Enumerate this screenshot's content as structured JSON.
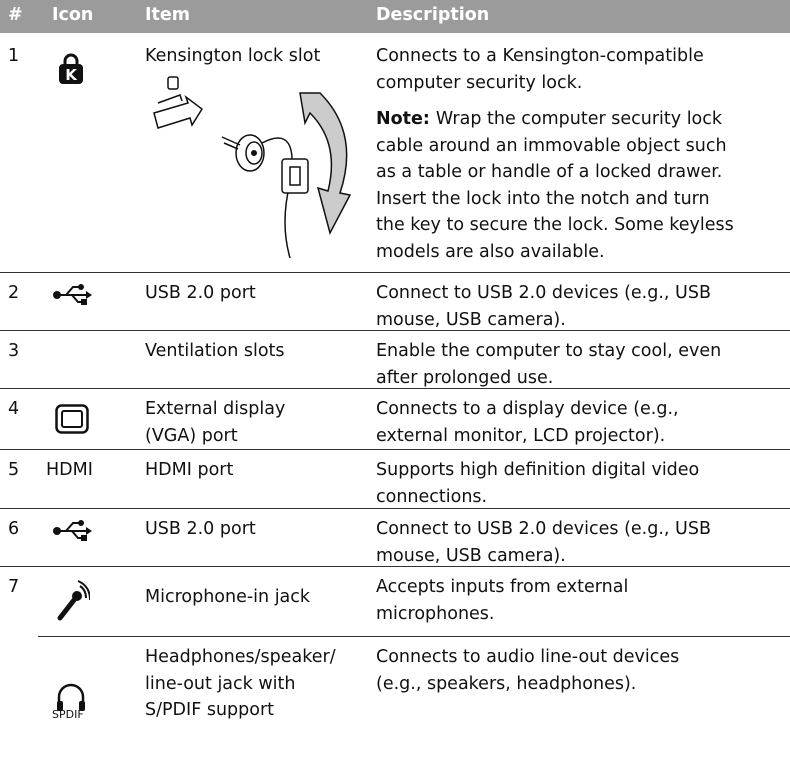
{
  "header": [
    "#",
    "Icon",
    "Item",
    "Description"
  ],
  "rows": [
    {
      "number": "1",
      "item": [
        "Kensington lock slot"
      ],
      "description": [
        "Connects to a Kensington-compatible",
        "computer security lock."
      ],
      "note": {
        "label": "Note:",
        "lines": [
          "Wrap the computer security lock",
          "cable around an immovable object such",
          "as a table or handle of a locked drawer.",
          "Insert the lock into the notch and turn",
          "the key to secure the lock. Some keyless",
          "models are also available."
        ]
      }
    },
    {
      "number": "2",
      "item": [
        "USB 2.0 port"
      ],
      "description": [
        "Connect to USB 2.0 devices (e.g., USB",
        "mouse, USB camera)."
      ]
    },
    {
      "number": "3",
      "item": [
        "Ventilation slots"
      ],
      "description": [
        "Enable the computer to stay cool, even",
        "after prolonged use."
      ]
    },
    {
      "number": "4",
      "item": [
        "External display",
        "(VGA) port"
      ],
      "description": [
        "Connects to a display device (e.g.,",
        "external monitor, LCD projector)."
      ]
    },
    {
      "number": "5",
      "icon": "HDMI",
      "item": [
        "HDMI port"
      ],
      "description": [
        "Supports high definition digital video",
        "connections."
      ]
    },
    {
      "number": "6",
      "item": [
        "USB 2.0 port"
      ],
      "description": [
        "Connect to USB 2.0 devices (e.g., USB",
        "mouse, USB camera)."
      ]
    },
    {
      "number": "7",
      "item": [
        "Microphone-in jack"
      ],
      "description": [
        "Accepts inputs from external",
        "microphones."
      ]
    },
    {
      "icon": "SPDIF",
      "item": [
        "Headphones/speaker/",
        "line-out jack with",
        "S/PDIF support"
      ],
      "description": [
        "Connects to audio line-out devices",
        "(e.g., speakers, headphones)."
      ]
    }
  ]
}
